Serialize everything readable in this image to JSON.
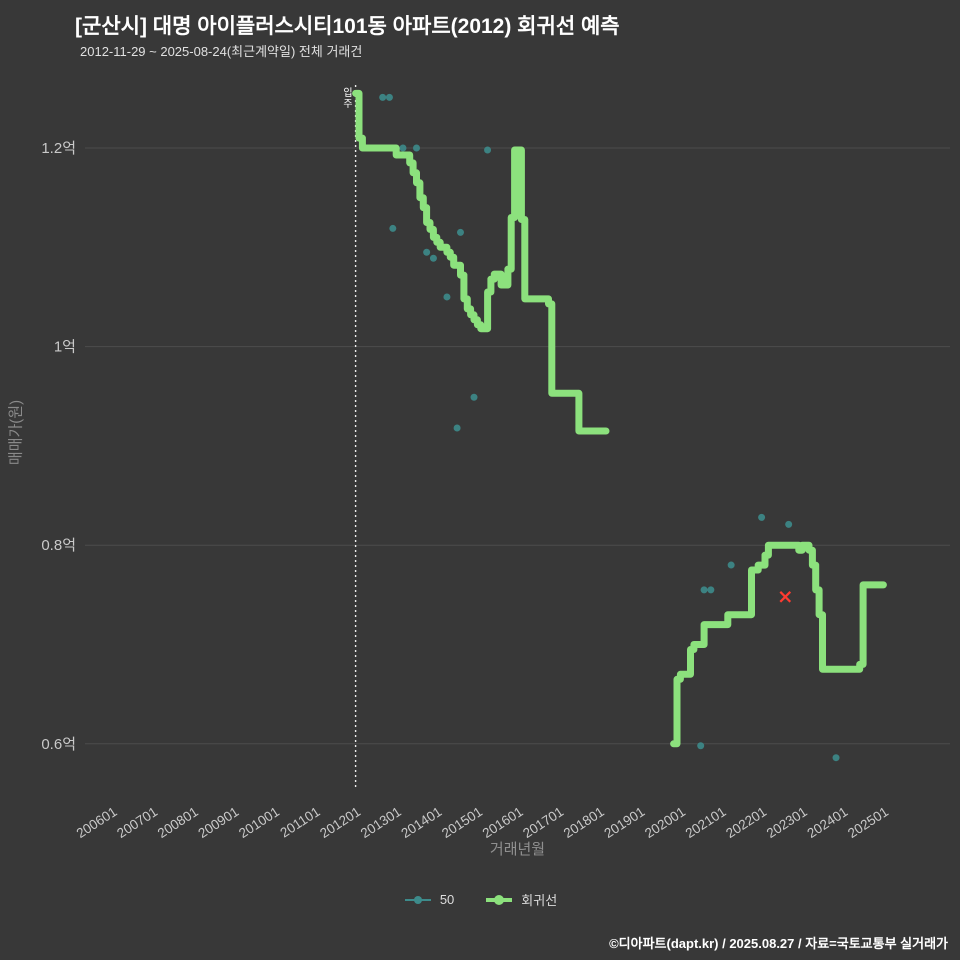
{
  "title": "[군산시] 대명 아이플러스시티101동 아파트(2012) 회귀선 예측",
  "subtitle": "2012-11-29 ~ 2025-08-24(최근계약일) 전체 거래건",
  "footer": "©디아파트(dapt.kr) / 2025.08.27 / 자료=국토교통부 실거래가",
  "colors": {
    "background": "#383838",
    "grid": "#4c4c4c",
    "tick_label": "#c9c9c9",
    "axis_title": "#909090",
    "annotation_line": "#eeeeee",
    "annotation_text": "#ffffff"
  },
  "chart_data": {
    "type": "line",
    "title": "[군산시] 대명 아이플러스시티101동 아파트(2012) 회귀선 예측",
    "subtitle": "2012-11-29 ~ 2025-08-24(최근계약일) 전체 거래건",
    "xlabel": "거래년월",
    "ylabel": "매매가(원)",
    "unit": "억",
    "ylim": [
      0.55,
      1.265
    ],
    "grid": true,
    "legend_position": "bottom",
    "x_ticks": [
      "200601",
      "200701",
      "200801",
      "200901",
      "201001",
      "201101",
      "201201",
      "201301",
      "201401",
      "201501",
      "201601",
      "201701",
      "201801",
      "201901",
      "202001",
      "202101",
      "202201",
      "202301",
      "202401",
      "202501"
    ],
    "y_ticks": [
      {
        "label": "1.2억",
        "value": 1.2
      },
      {
        "label": "1억",
        "value": 1.0
      },
      {
        "label": "0.8억",
        "value": 0.8
      },
      {
        "label": "0.6억",
        "value": 0.6
      }
    ],
    "annotation": {
      "x": "2012-01",
      "label": "입주"
    },
    "series": [
      {
        "name": "50",
        "type": "scatter",
        "color": "#3d8b8b",
        "points": [
          [
            "2012-09",
            1.251
          ],
          [
            "2012-11",
            1.251
          ],
          [
            "2012-12",
            1.119
          ],
          [
            "2013-03",
            1.2
          ],
          [
            "2013-07",
            1.2
          ],
          [
            "2013-10",
            1.095
          ],
          [
            "2013-12",
            1.089
          ],
          [
            "2014-04",
            1.05
          ],
          [
            "2014-07",
            0.918
          ],
          [
            "2014-08",
            1.115
          ],
          [
            "2014-12",
            0.949
          ],
          [
            "2015-04",
            1.198
          ],
          [
            "2020-07",
            0.598
          ],
          [
            "2020-08",
            0.755
          ],
          [
            "2020-10",
            0.755
          ],
          [
            "2021-04",
            0.78
          ],
          [
            "2022-01",
            0.828
          ],
          [
            "2022-09",
            0.821
          ],
          [
            "2023-06",
            0.751
          ],
          [
            "2023-11",
            0.586
          ]
        ]
      },
      {
        "name": "회귀선",
        "type": "step-line",
        "color": "#8ce17d",
        "line_width": 7,
        "segments": [
          [
            [
              "2012-01",
              1.255
            ],
            [
              "2012-02",
              1.21
            ],
            [
              "2012-03",
              1.2
            ],
            [
              "2013-01",
              1.193
            ],
            [
              "2013-05",
              1.185
            ],
            [
              "2013-06",
              1.175
            ],
            [
              "2013-07",
              1.165
            ],
            [
              "2013-08",
              1.15
            ],
            [
              "2013-09",
              1.14
            ],
            [
              "2013-10",
              1.125
            ],
            [
              "2013-11",
              1.118
            ],
            [
              "2013-12",
              1.11
            ],
            [
              "2014-01",
              1.105
            ],
            [
              "2014-02",
              1.1
            ],
            [
              "2014-04",
              1.095
            ],
            [
              "2014-05",
              1.09
            ],
            [
              "2014-06",
              1.082
            ],
            [
              "2014-08",
              1.072
            ],
            [
              "2014-09",
              1.048
            ],
            [
              "2014-10",
              1.038
            ],
            [
              "2014-11",
              1.032
            ],
            [
              "2014-12",
              1.027
            ],
            [
              "2015-01",
              1.022
            ],
            [
              "2015-02",
              1.018
            ],
            [
              "2015-04",
              1.055
            ],
            [
              "2015-05",
              1.068
            ],
            [
              "2015-06",
              1.073
            ],
            [
              "2015-08",
              1.062
            ],
            [
              "2015-10",
              1.078
            ],
            [
              "2015-11",
              1.13
            ],
            [
              "2015-12",
              1.198
            ],
            [
              "2016-02",
              1.128
            ],
            [
              "2016-03",
              1.048
            ],
            [
              "2016-10",
              1.043
            ],
            [
              "2016-11",
              0.953
            ],
            [
              "2017-07",
              0.915
            ],
            [
              "2018-03",
              0.915
            ]
          ],
          [
            [
              "2019-11",
              0.6
            ],
            [
              "2019-12",
              0.665
            ],
            [
              "2020-01",
              0.67
            ],
            [
              "2020-04",
              0.695
            ],
            [
              "2020-05",
              0.7
            ],
            [
              "2020-08",
              0.72
            ],
            [
              "2021-03",
              0.73
            ],
            [
              "2021-10",
              0.775
            ],
            [
              "2021-12",
              0.78
            ],
            [
              "2022-02",
              0.79
            ],
            [
              "2022-03",
              0.8
            ],
            [
              "2022-12",
              0.795
            ],
            [
              "2023-01",
              0.8
            ],
            [
              "2023-03",
              0.795
            ],
            [
              "2023-04",
              0.78
            ],
            [
              "2023-05",
              0.755
            ],
            [
              "2023-06",
              0.73
            ],
            [
              "2023-07",
              0.675
            ],
            [
              "2024-06",
              0.68
            ],
            [
              "2024-07",
              0.76
            ],
            [
              "2025-01",
              0.76
            ]
          ]
        ]
      }
    ],
    "markers": [
      {
        "shape": "x",
        "color": "#ff3b30",
        "point": [
          "2022-08",
          0.748
        ]
      }
    ]
  }
}
